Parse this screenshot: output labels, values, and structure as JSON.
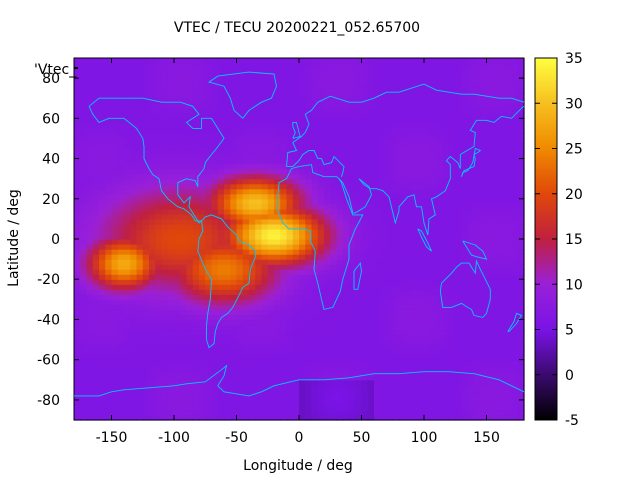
{
  "chart_data": {
    "type": "heatmap",
    "title": "VTEC / TECU 20200221_052.65700",
    "xlabel": "Longitude / deg",
    "ylabel": "Latitude / deg",
    "series_key": "'Vtec_",
    "xlim": [
      -180,
      180
    ],
    "ylim": [
      -90,
      90
    ],
    "xticks": [
      -150,
      -100,
      -50,
      0,
      50,
      100,
      150
    ],
    "yticks": [
      -80,
      -60,
      -40,
      -20,
      0,
      20,
      40,
      60,
      80
    ],
    "colorbar": {
      "range": [
        -5,
        35
      ],
      "ticks": [
        -5,
        0,
        5,
        10,
        15,
        20,
        25,
        30,
        35
      ],
      "palette_stops": [
        "#000000",
        "#3b0a6e",
        "#7a13e6",
        "#9a20d8",
        "#c0203f",
        "#e0480a",
        "#f08a00",
        "#f6c01f",
        "#ffff40"
      ]
    },
    "background_vtec": 6,
    "ionization_peaks": [
      {
        "lon": -20,
        "lat": 2,
        "sigma_lon": 28,
        "sigma_lat": 10,
        "vtec": 34
      },
      {
        "lon": -35,
        "lat": 18,
        "sigma_lon": 25,
        "sigma_lat": 9,
        "vtec": 30
      },
      {
        "lon": -140,
        "lat": -12,
        "sigma_lon": 20,
        "sigma_lat": 9,
        "vtec": 28
      },
      {
        "lon": -95,
        "lat": 0,
        "sigma_lon": 45,
        "sigma_lat": 18,
        "vtec": 20
      },
      {
        "lon": -60,
        "lat": -15,
        "sigma_lon": 30,
        "sigma_lat": 12,
        "vtec": 24
      }
    ]
  }
}
